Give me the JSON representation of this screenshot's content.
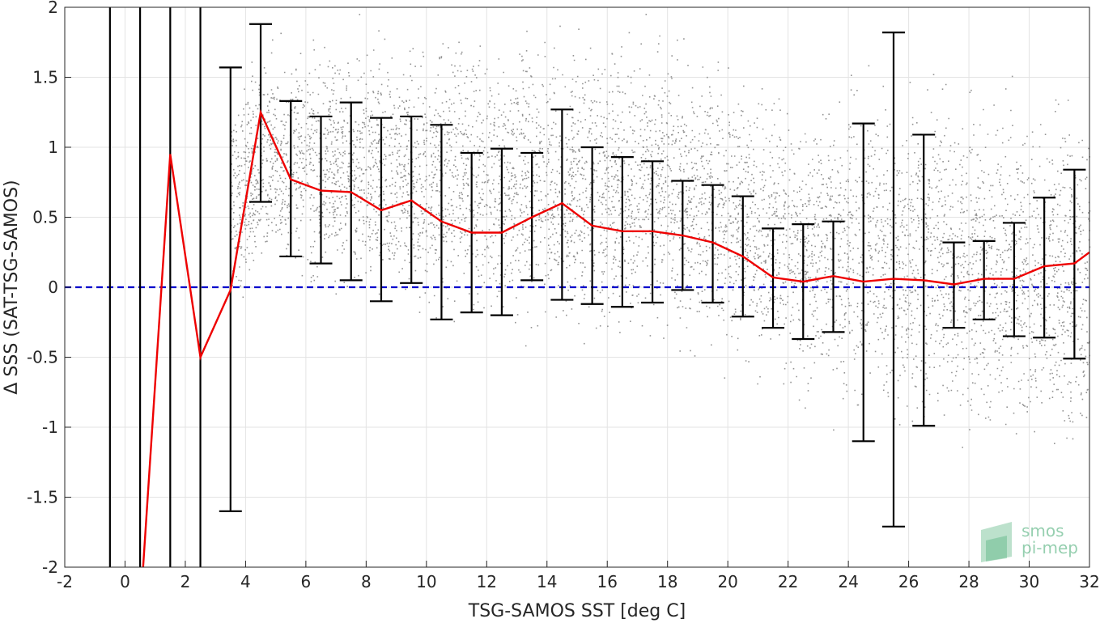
{
  "chart_data": {
    "type": "scatter",
    "xlabel": "TSG-SAMOS SST [deg C]",
    "ylabel": "Δ SSS (SAT-TSG-SAMOS)",
    "xlim": [
      -2,
      32
    ],
    "ylim": [
      -2,
      2
    ],
    "xticks": [
      -2,
      0,
      2,
      4,
      6,
      8,
      10,
      12,
      14,
      16,
      18,
      20,
      22,
      24,
      26,
      28,
      30,
      32
    ],
    "yticks": [
      -2,
      -1.5,
      -1,
      -0.5,
      0,
      0.5,
      1,
      1.5,
      2
    ],
    "grid": true,
    "reference_line": {
      "y": 0,
      "color": "#0000cc",
      "style": "dashed"
    },
    "scatter_color": "#808080",
    "mean_line_color": "#ee0000",
    "errorbar_color": "#000000",
    "mean": {
      "x": [
        0.6,
        1.5,
        2.5,
        3.5,
        4.5,
        5.5,
        6.5,
        7.5,
        8.5,
        9.5,
        10.5,
        11.5,
        12.5,
        13.5,
        14.5,
        15.5,
        16.5,
        17.5,
        18.5,
        19.5,
        20.5,
        21.5,
        22.5,
        23.5,
        24.5,
        25.5,
        26.5,
        27.5,
        28.5,
        29.5,
        30.5,
        31.5,
        32
      ],
      "y": [
        -2.0,
        0.95,
        -0.5,
        -0.02,
        1.25,
        0.77,
        0.69,
        0.68,
        0.55,
        0.62,
        0.47,
        0.39,
        0.39,
        0.5,
        0.6,
        0.44,
        0.4,
        0.4,
        0.37,
        0.32,
        0.22,
        0.07,
        0.04,
        0.08,
        0.04,
        0.06,
        0.05,
        0.02,
        0.06,
        0.06,
        0.15,
        0.17,
        0.25
      ]
    },
    "error_bars": [
      {
        "x": -0.5,
        "low": -2.0,
        "high": 2.0
      },
      {
        "x": 0.5,
        "low": -2.0,
        "high": 2.0
      },
      {
        "x": 1.5,
        "low": -2.0,
        "high": 2.0
      },
      {
        "x": 2.5,
        "low": -2.0,
        "high": 2.0
      },
      {
        "x": 3.5,
        "low": -1.6,
        "high": 1.57
      },
      {
        "x": 4.5,
        "low": 0.61,
        "high": 1.88
      },
      {
        "x": 5.5,
        "low": 0.22,
        "high": 1.33
      },
      {
        "x": 6.5,
        "low": 0.17,
        "high": 1.22
      },
      {
        "x": 7.5,
        "low": 0.05,
        "high": 1.32
      },
      {
        "x": 8.5,
        "low": -0.1,
        "high": 1.21
      },
      {
        "x": 9.5,
        "low": 0.03,
        "high": 1.22
      },
      {
        "x": 10.5,
        "low": -0.23,
        "high": 1.16
      },
      {
        "x": 11.5,
        "low": -0.18,
        "high": 0.96
      },
      {
        "x": 12.5,
        "low": -0.2,
        "high": 0.99
      },
      {
        "x": 13.5,
        "low": 0.05,
        "high": 0.96
      },
      {
        "x": 14.5,
        "low": -0.09,
        "high": 1.27
      },
      {
        "x": 15.5,
        "low": -0.12,
        "high": 1.0
      },
      {
        "x": 16.5,
        "low": -0.14,
        "high": 0.93
      },
      {
        "x": 17.5,
        "low": -0.11,
        "high": 0.9
      },
      {
        "x": 18.5,
        "low": -0.02,
        "high": 0.76
      },
      {
        "x": 19.5,
        "low": -0.11,
        "high": 0.73
      },
      {
        "x": 20.5,
        "low": -0.21,
        "high": 0.65
      },
      {
        "x": 21.5,
        "low": -0.29,
        "high": 0.42
      },
      {
        "x": 22.5,
        "low": -0.37,
        "high": 0.45
      },
      {
        "x": 23.5,
        "low": -0.32,
        "high": 0.47
      },
      {
        "x": 24.5,
        "low": -1.1,
        "high": 1.17
      },
      {
        "x": 25.5,
        "low": -1.71,
        "high": 1.82
      },
      {
        "x": 26.5,
        "low": -0.99,
        "high": 1.09
      },
      {
        "x": 27.5,
        "low": -0.29,
        "high": 0.32
      },
      {
        "x": 28.5,
        "low": -0.23,
        "high": 0.33
      },
      {
        "x": 29.5,
        "low": -0.35,
        "high": 0.46
      },
      {
        "x": 30.5,
        "low": -0.36,
        "high": 0.64
      },
      {
        "x": 31.5,
        "low": -0.51,
        "high": 0.84
      }
    ],
    "scatter_envelope": [
      {
        "x": 3.5,
        "low": -0.3,
        "high": 1.6
      },
      {
        "x": 4.5,
        "low": -0.1,
        "high": 1.9
      },
      {
        "x": 6,
        "low": -0.2,
        "high": 1.95
      },
      {
        "x": 8,
        "low": -0.35,
        "high": 2.0
      },
      {
        "x": 10,
        "low": -0.45,
        "high": 2.0
      },
      {
        "x": 12,
        "low": -0.5,
        "high": 2.0
      },
      {
        "x": 14,
        "low": -0.5,
        "high": 2.0
      },
      {
        "x": 16,
        "low": -0.55,
        "high": 2.0
      },
      {
        "x": 18,
        "low": -0.6,
        "high": 2.0
      },
      {
        "x": 20,
        "low": -0.75,
        "high": 1.8
      },
      {
        "x": 22,
        "low": -0.95,
        "high": 1.6
      },
      {
        "x": 24,
        "low": -1.15,
        "high": 1.7
      },
      {
        "x": 26,
        "low": -1.3,
        "high": 1.85
      },
      {
        "x": 28,
        "low": -1.35,
        "high": 1.7
      },
      {
        "x": 30,
        "low": -1.45,
        "high": 1.7
      },
      {
        "x": 32,
        "low": -1.6,
        "high": 1.6
      }
    ]
  },
  "logo": {
    "line1": "smos",
    "line2": "pi-mep"
  }
}
